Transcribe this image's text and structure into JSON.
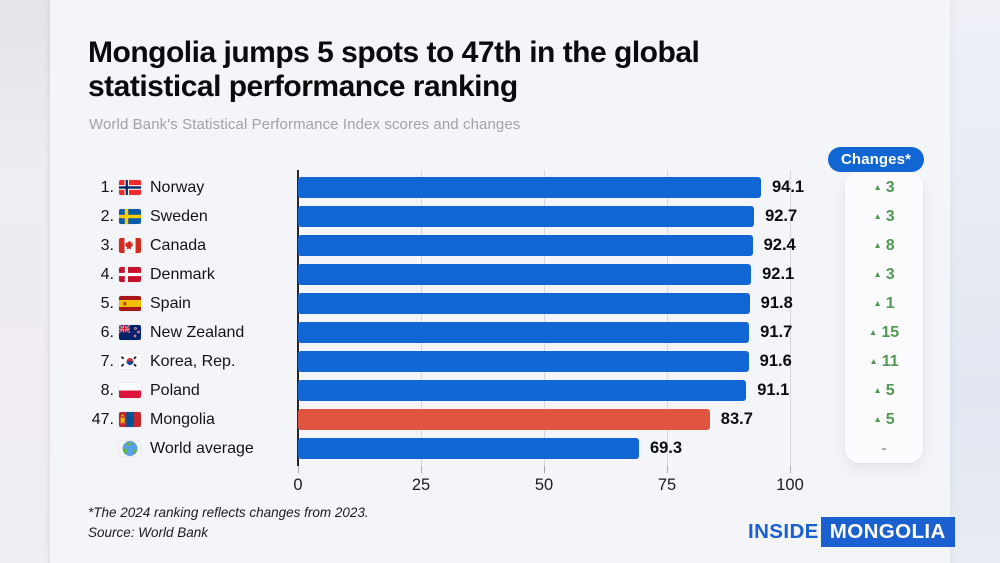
{
  "header": {
    "title_line1": "Mongolia jumps 5 spots to 47th in the global",
    "title_line2": "statistical performance ranking",
    "subtitle": "World Bank's Statistical Performance Index scores and changes"
  },
  "chart_data": {
    "type": "bar",
    "orientation": "horizontal",
    "title": "World Bank's Statistical Performance Index scores and changes",
    "xlabel": "",
    "xlim": [
      0,
      100
    ],
    "x_ticks": [
      0,
      25,
      50,
      75,
      100
    ],
    "grid": "vertical",
    "changes_header": "Changes*",
    "no_change_symbol": "-",
    "rows": [
      {
        "rank": "1.",
        "country": "Norway",
        "flag": "norway",
        "value": 94.1,
        "change": 3,
        "highlight": false
      },
      {
        "rank": "2.",
        "country": "Sweden",
        "flag": "sweden",
        "value": 92.7,
        "change": 3,
        "highlight": false
      },
      {
        "rank": "3.",
        "country": "Canada",
        "flag": "canada",
        "value": 92.4,
        "change": 8,
        "highlight": false
      },
      {
        "rank": "4.",
        "country": "Denmark",
        "flag": "denmark",
        "value": 92.1,
        "change": 3,
        "highlight": false
      },
      {
        "rank": "5.",
        "country": "Spain",
        "flag": "spain",
        "value": 91.8,
        "change": 1,
        "highlight": false
      },
      {
        "rank": "6.",
        "country": "New Zealand",
        "flag": "new-zealand",
        "value": 91.7,
        "change": 15,
        "highlight": false
      },
      {
        "rank": "7.",
        "country": "Korea, Rep.",
        "flag": "south-korea",
        "value": 91.6,
        "change": 11,
        "highlight": false
      },
      {
        "rank": "8.",
        "country": "Poland",
        "flag": "poland",
        "value": 91.1,
        "change": 5,
        "highlight": false
      },
      {
        "rank": "47.",
        "country": "Mongolia",
        "flag": "mongolia",
        "value": 83.7,
        "change": 5,
        "highlight": true
      },
      {
        "rank": "",
        "country": "World average",
        "flag": "world",
        "value": 69.3,
        "change": null,
        "highlight": false
      }
    ],
    "colors": {
      "bar": "#1166d4",
      "highlight_bar": "#df5440",
      "change_text": "#4e9b51",
      "axis_line": "#26262a",
      "gridline": "#d7d8dd"
    }
  },
  "footer": {
    "note": "*The 2024 ranking reflects changes from 2023.",
    "source": "Source: World Bank"
  },
  "logo": {
    "part1": "INSIDE",
    "part2": "MONGOLIA"
  }
}
